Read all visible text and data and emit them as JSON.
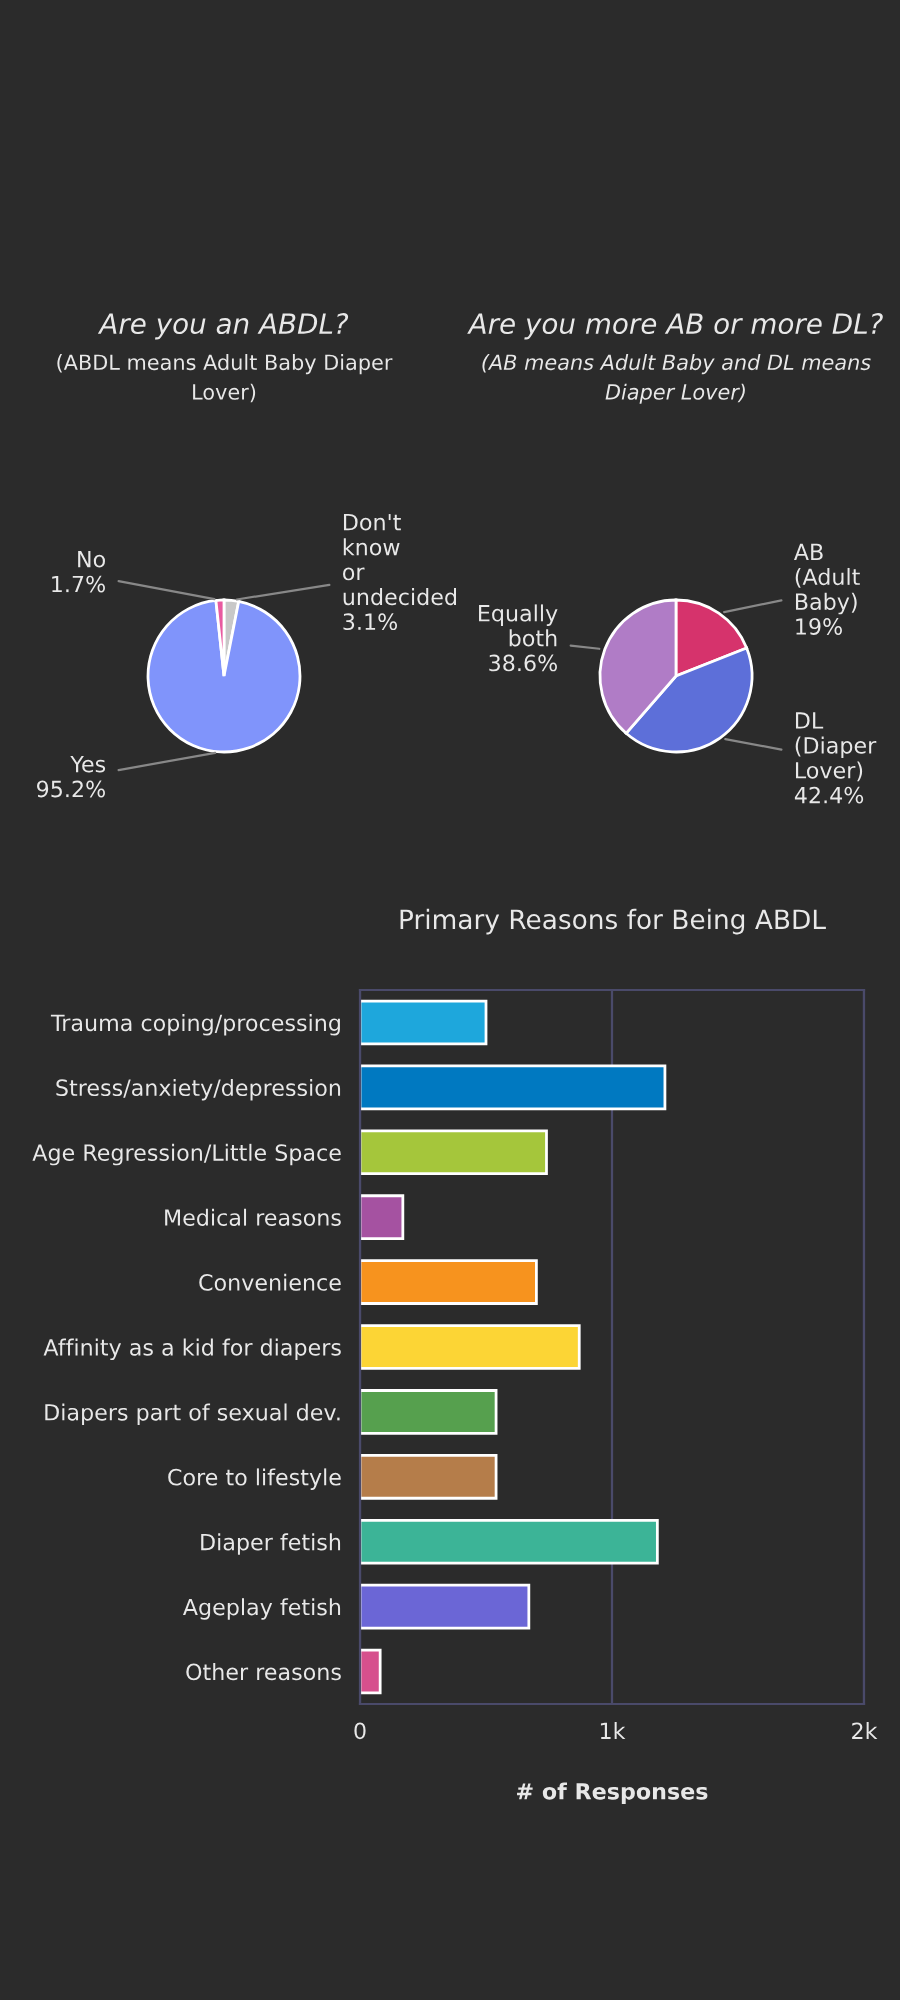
{
  "chart_data": [
    {
      "type": "pie",
      "title": "Are you an ABDL?",
      "subtitle": "(ABDL means Adult Baby Diaper Lover)",
      "categories": [
        "Don't know or undecided",
        "Yes",
        "No"
      ],
      "values": [
        3.1,
        95.2,
        1.7
      ],
      "value_labels": [
        "3.1%",
        "95.2%",
        "1.7%"
      ],
      "colors": [
        "#c8c8c8",
        "#8094fb",
        "#e85aa0"
      ]
    },
    {
      "type": "pie",
      "title": "Are you more AB or more DL?",
      "subtitle": "(AB means Adult Baby and DL means Diaper Lover)",
      "categories": [
        "AB (Adult Baby)",
        "DL (Diaper Lover)",
        "Equally both"
      ],
      "values": [
        19,
        42.4,
        38.6
      ],
      "value_labels": [
        "19%",
        "42.4%",
        "38.6%"
      ],
      "colors": [
        "#d6336c",
        "#5d6fd9",
        "#b07cc6"
      ]
    },
    {
      "type": "bar",
      "orientation": "horizontal",
      "title": "Primary Reasons for Being ABDL",
      "xlabel": "# of Responses",
      "categories": [
        "Trauma coping/processing",
        "Stress/anxiety/depression",
        "Age Regression/Little Space",
        "Medical reasons",
        "Convenience",
        "Affinity as a kid for diapers",
        "Diapers part of sexual dev.",
        "Core to lifestyle",
        "Diaper fetish",
        "Ageplay fetish",
        "Other reasons"
      ],
      "values": [
        500,
        1210,
        740,
        170,
        700,
        870,
        540,
        540,
        1180,
        670,
        80
      ],
      "colors": [
        "#1ea7dc",
        "#0079c1",
        "#a5c63b",
        "#a552a1",
        "#f7931e",
        "#fcd535",
        "#56a04e",
        "#b57d4a",
        "#3cb497",
        "#6b66d6",
        "#d6508d"
      ],
      "xlim": [
        0,
        2000
      ],
      "xticks": [
        0,
        {
          "value": 1000,
          "label": "1k"
        },
        {
          "value": 2000,
          "label": "2k"
        }
      ],
      "grid": "x",
      "legend": false
    }
  ]
}
